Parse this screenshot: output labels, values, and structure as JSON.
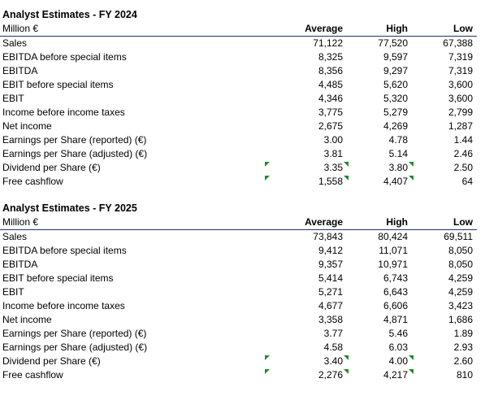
{
  "tables": [
    {
      "title": "Analyst Estimates - FY 2024",
      "unit": "Million €",
      "columns": [
        "Average",
        "High",
        "Low"
      ],
      "rows": [
        {
          "label": "Sales",
          "avg": "71,122",
          "high": "77,520",
          "low": "67,388"
        },
        {
          "label": "EBITDA before special items",
          "avg": "8,325",
          "high": "9,597",
          "low": "7,319"
        },
        {
          "label": "EBITDA",
          "avg": "8,356",
          "high": "9,297",
          "low": "7,319"
        },
        {
          "label": "EBIT before special items",
          "avg": "4,485",
          "high": "5,620",
          "low": "3,600"
        },
        {
          "label": "EBIT",
          "avg": "4,346",
          "high": "5,320",
          "low": "3,600"
        },
        {
          "label": "Income before income taxes",
          "avg": "3,775",
          "high": "5,279",
          "low": "2,799"
        },
        {
          "label": "Net income",
          "avg": "2,675",
          "high": "4,269",
          "low": "1,287"
        },
        {
          "label": "Earnings per Share (reported) (€)",
          "avg": "3.00",
          "high": "4.78",
          "low": "1.44"
        },
        {
          "label": "Earnings per Share (adjusted) (€)",
          "avg": "3.81",
          "high": "5.14",
          "low": "2.46"
        },
        {
          "label": "Dividend per Share (€)",
          "avg": "3.35",
          "high": "3.80",
          "low": "2.50"
        },
        {
          "label": "Free cashflow",
          "avg": "1,558",
          "high": "4,407",
          "low": "64"
        }
      ]
    },
    {
      "title": "Analyst Estimates - FY 2025",
      "unit": "Million €",
      "columns": [
        "Average",
        "High",
        "Low"
      ],
      "rows": [
        {
          "label": "Sales",
          "avg": "73,843",
          "high": "80,424",
          "low": "69,511"
        },
        {
          "label": "EBITDA before special items",
          "avg": "9,412",
          "high": "11,071",
          "low": "8,050"
        },
        {
          "label": "EBITDA",
          "avg": "9,357",
          "high": "10,971",
          "low": "8,050"
        },
        {
          "label": "EBIT before special items",
          "avg": "5,414",
          "high": "6,743",
          "low": "4,259"
        },
        {
          "label": "EBIT",
          "avg": "5,271",
          "high": "6,643",
          "low": "4,259"
        },
        {
          "label": "Income before income taxes",
          "avg": "4,677",
          "high": "6,606",
          "low": "3,423"
        },
        {
          "label": "Net income",
          "avg": "3,358",
          "high": "4,871",
          "low": "1,686"
        },
        {
          "label": "Earnings per Share (reported) (€)",
          "avg": "3.77",
          "high": "5.46",
          "low": "1.89"
        },
        {
          "label": "Earnings per Share (adjusted) (€)",
          "avg": "4.58",
          "high": "6.03",
          "low": "2.93"
        },
        {
          "label": "Dividend per Share (€)",
          "avg": "3.40",
          "high": "4.00",
          "low": "2.60"
        },
        {
          "label": "Free cashflow",
          "avg": "2,276",
          "high": "4,217",
          "low": "810"
        }
      ]
    }
  ],
  "colors": {
    "header_rule": "#1f3864",
    "comment_flag": "#1e8c2a"
  }
}
